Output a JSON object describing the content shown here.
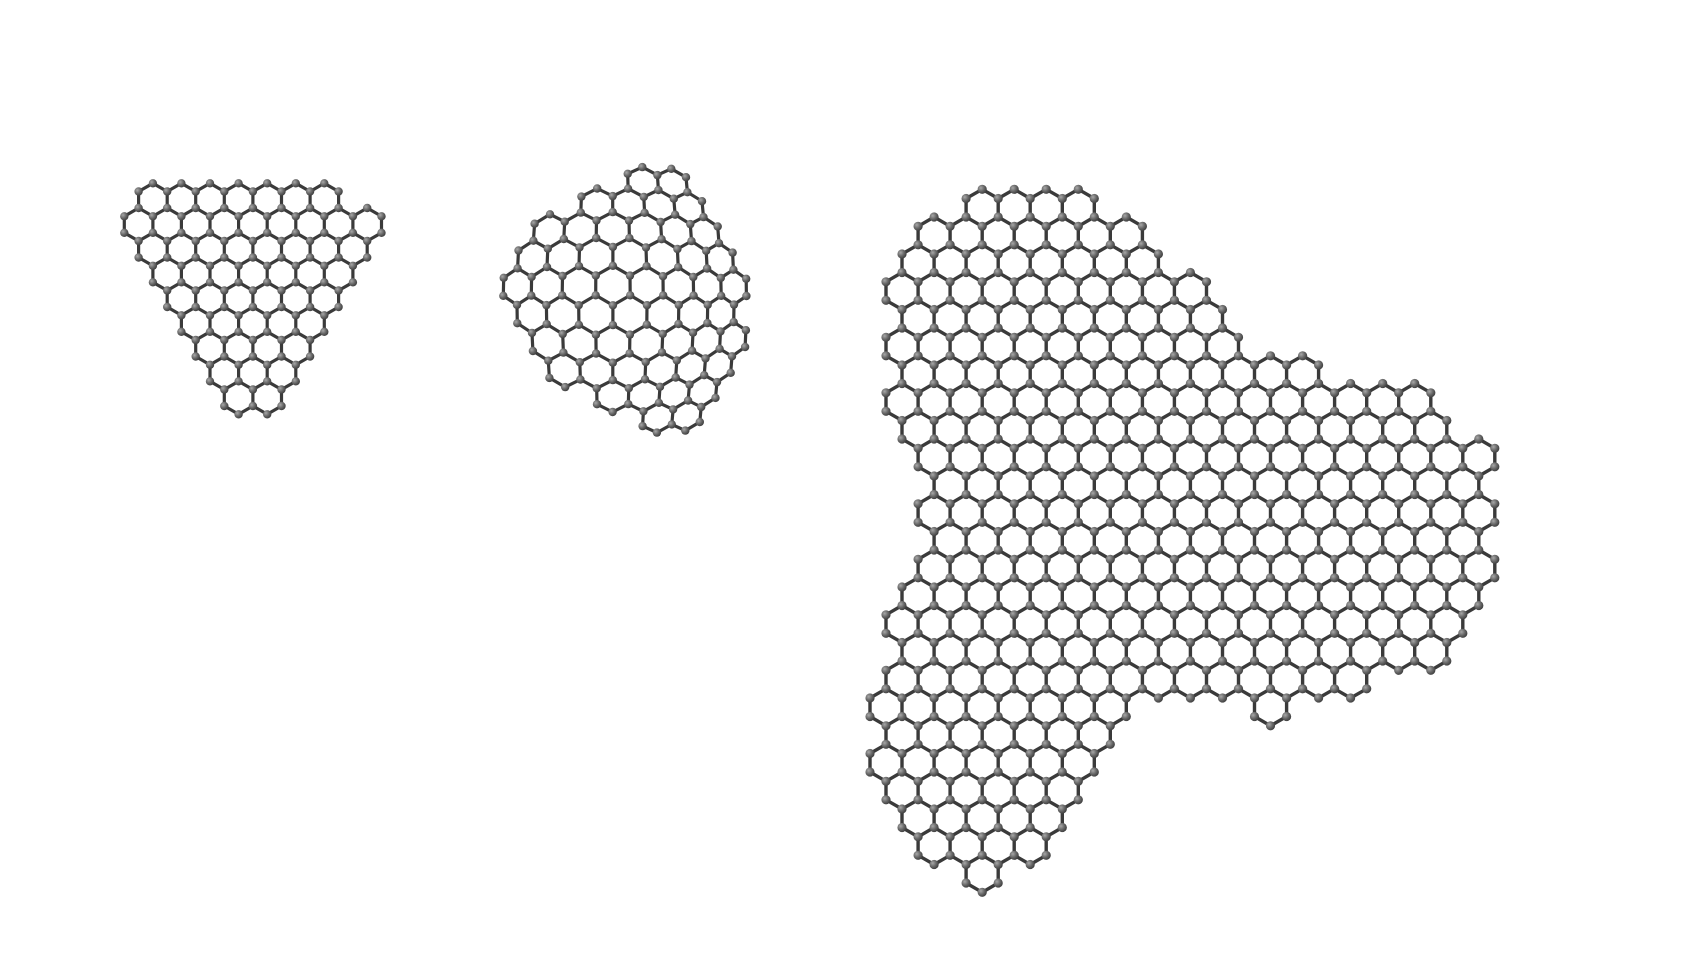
{
  "scene": {
    "background": "#ffffff",
    "bond_color": "#3a3a3a",
    "atom_color": "#5f5f5f",
    "atom_highlight": "#9a9a9a",
    "element": "carbon"
  },
  "clusters": [
    {
      "name": "small-graphene-flake",
      "shape": "rounded triangle, flat side up",
      "style": "flat hexagonal lattice"
    },
    {
      "name": "curved-graphene-flake",
      "shape": "rounded triangle, curved/domed",
      "style": "curved hexagonal lattice"
    },
    {
      "name": "large-graphene-flake",
      "shape": "three-lobed triangular flake",
      "style": "flat hexagonal lattice"
    }
  ]
}
